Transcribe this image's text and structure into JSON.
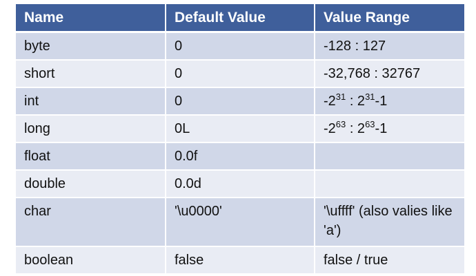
{
  "table": {
    "headers": [
      "Name",
      "Default Value",
      "Value Range"
    ],
    "rows": [
      {
        "name": "byte",
        "default": "0",
        "range": "-128 : 127"
      },
      {
        "name": "short",
        "default": "0",
        "range": "-32,768 : 32767"
      },
      {
        "name": "int",
        "default": "0",
        "range_parts": {
          "base1": "-2",
          "exp1": "31",
          "mid": " : 2",
          "exp2": "31",
          "tail": "-1"
        }
      },
      {
        "name": "long",
        "default": "0L",
        "range_parts": {
          "base1": "-2",
          "exp1": "63",
          "mid": " : 2",
          "exp2": "63",
          "tail": "-1"
        }
      },
      {
        "name": "float",
        "default": "0.0f",
        "range": ""
      },
      {
        "name": "double",
        "default": "0.0d",
        "range": ""
      },
      {
        "name": "char",
        "default": "'\\u0000'",
        "range": "'\\uffff' (also valies like 'a')"
      },
      {
        "name": "boolean",
        "default": "false",
        "range": "false / true"
      }
    ]
  },
  "colors": {
    "header_bg": "#3f5f9b",
    "row_odd_bg": "#d0d7e8",
    "row_even_bg": "#e9ecf4"
  }
}
